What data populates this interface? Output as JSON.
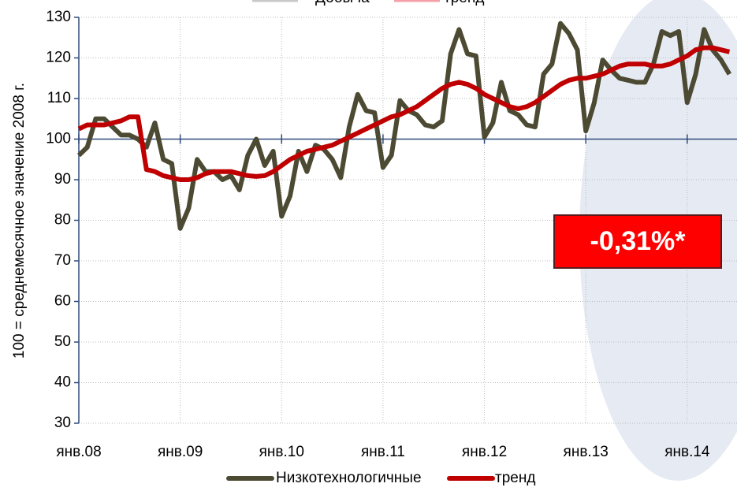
{
  "chart_data": {
    "type": "line",
    "ylabel": "100 = среднемесячное значение 2008 г.",
    "top_legend": [
      "Добыча",
      "тренд"
    ],
    "annotation": "-0,31%*",
    "x": [
      "2008-01",
      "2008-02",
      "2008-03",
      "2008-04",
      "2008-05",
      "2008-06",
      "2008-07",
      "2008-08",
      "2008-09",
      "2008-10",
      "2008-11",
      "2008-12",
      "2009-01",
      "2009-02",
      "2009-03",
      "2009-04",
      "2009-05",
      "2009-06",
      "2009-07",
      "2009-08",
      "2009-09",
      "2009-10",
      "2009-11",
      "2009-12",
      "2010-01",
      "2010-02",
      "2010-03",
      "2010-04",
      "2010-05",
      "2010-06",
      "2010-07",
      "2010-08",
      "2010-09",
      "2010-10",
      "2010-11",
      "2010-12",
      "2011-01",
      "2011-02",
      "2011-03",
      "2011-04",
      "2011-05",
      "2011-06",
      "2011-07",
      "2011-08",
      "2011-09",
      "2011-10",
      "2011-11",
      "2011-12",
      "2012-01",
      "2012-02",
      "2012-03",
      "2012-04",
      "2012-05",
      "2012-06",
      "2012-07",
      "2012-08",
      "2012-09",
      "2012-10",
      "2012-11",
      "2012-12",
      "2013-01",
      "2013-02",
      "2013-03",
      "2013-04",
      "2013-05",
      "2013-06",
      "2013-07",
      "2013-08",
      "2013-09",
      "2013-10",
      "2013-11",
      "2013-12",
      "2014-01",
      "2014-02",
      "2014-03",
      "2014-04",
      "2014-05",
      "2014-06"
    ],
    "series": [
      {
        "name": "Низкотехнологичные",
        "color": "#4d4a33",
        "values": [
          96,
          98,
          105,
          105,
          103,
          101,
          101,
          100,
          98,
          104,
          95,
          94,
          78,
          83,
          95,
          92,
          92,
          90,
          91,
          87.5,
          96,
          100,
          93.5,
          97,
          81,
          86,
          97,
          92,
          98.5,
          97.5,
          95,
          90.5,
          103,
          111,
          107,
          106.5,
          93,
          96,
          109.5,
          107,
          106,
          103.5,
          103,
          104.5,
          121,
          127,
          121,
          120.5,
          100.5,
          104,
          114,
          107,
          106,
          103.5,
          103,
          116,
          118.5,
          128.5,
          126,
          122,
          102,
          109,
          119.5,
          117,
          115,
          114.5,
          114,
          114,
          118.5,
          126.5,
          125.5,
          126.5,
          109,
          116,
          127,
          122,
          119.5,
          116
        ]
      },
      {
        "name": "тренд",
        "color": "#c00000",
        "values": [
          102.5,
          103.5,
          103.5,
          103.5,
          104,
          104.5,
          105.5,
          105.5,
          92.5,
          92,
          91,
          90.5,
          90,
          90,
          90.5,
          91.5,
          92,
          92,
          92,
          91.5,
          91,
          90.8,
          91,
          92,
          93.5,
          95,
          96,
          97,
          97.5,
          98,
          98.5,
          99.5,
          100.5,
          101.5,
          102.5,
          103.5,
          104.5,
          105.5,
          106,
          107,
          108,
          109.5,
          111,
          112.5,
          113.5,
          114,
          113.5,
          112.5,
          111,
          110,
          109,
          108,
          107.5,
          108,
          109,
          110.5,
          112,
          113.5,
          114.5,
          115,
          115,
          115.5,
          116,
          117,
          118,
          118.5,
          118.5,
          118.5,
          118,
          118,
          118.5,
          119.5,
          120.5,
          122,
          122.5,
          122.5,
          122,
          121.5
        ]
      }
    ],
    "xticks": [
      {
        "value": "2008-01",
        "label": "янв.08"
      },
      {
        "value": "2009-01",
        "label": "янв.09"
      },
      {
        "value": "2010-01",
        "label": "янв.10"
      },
      {
        "value": "2011-01",
        "label": "янв.11"
      },
      {
        "value": "2012-01",
        "label": "янв.12"
      },
      {
        "value": "2013-01",
        "label": "янв.13"
      },
      {
        "value": "2014-01",
        "label": "янв.14"
      }
    ],
    "ylim": [
      30,
      130
    ],
    "yticks": [
      30,
      40,
      50,
      60,
      70,
      80,
      90,
      100,
      110,
      120,
      130
    ],
    "x_axis_at": 100,
    "grid": true
  }
}
